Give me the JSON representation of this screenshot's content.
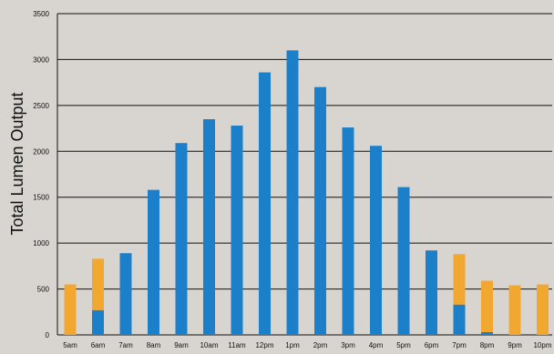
{
  "chart_data": {
    "type": "bar",
    "stacked": true,
    "title": "",
    "xlabel": "",
    "ylabel": "Total Lumen Output",
    "ylim": [
      0,
      3500
    ],
    "yticks": [
      0,
      500,
      1000,
      1500,
      2000,
      2500,
      3000,
      3500
    ],
    "grid": true,
    "legend": "none",
    "categories": [
      "5am",
      "6am",
      "7am",
      "8am",
      "9am",
      "10am",
      "11am",
      "12pm",
      "1pm",
      "2pm",
      "3pm",
      "4pm",
      "5pm",
      "6pm",
      "7pm",
      "8pm",
      "9pm",
      "10pm"
    ],
    "series": [
      {
        "color": "#1b7fca",
        "values": [
          0,
          270,
          890,
          1580,
          2090,
          2350,
          2280,
          2860,
          3100,
          2700,
          2260,
          2060,
          1610,
          920,
          330,
          30,
          0,
          0
        ]
      },
      {
        "color": "#f2a830",
        "values": [
          550,
          560,
          0,
          0,
          0,
          0,
          0,
          0,
          0,
          0,
          0,
          0,
          0,
          0,
          550,
          560,
          540,
          550
        ]
      }
    ]
  }
}
